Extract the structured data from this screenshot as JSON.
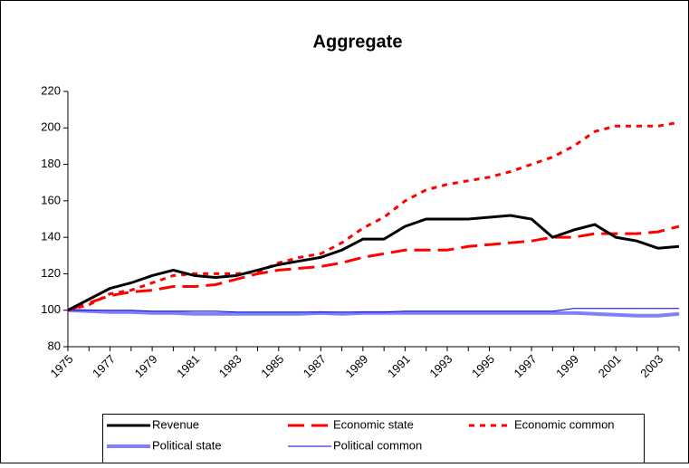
{
  "chart_data": {
    "type": "line",
    "title": "Aggregate",
    "categories": [
      "1975",
      null,
      "1977",
      null,
      "1979",
      null,
      "1981",
      null,
      "1983",
      null,
      "1985",
      null,
      "1987",
      null,
      "1989",
      null,
      "1991",
      null,
      "1993",
      null,
      "1995",
      null,
      "1997",
      null,
      "1999",
      null,
      "2001",
      null,
      "2003",
      null
    ],
    "ylim": [
      80,
      220
    ],
    "yticks": [
      80,
      100,
      120,
      140,
      160,
      180,
      200,
      220
    ],
    "grid": false,
    "series": [
      {
        "name": "Revenue",
        "color": "#000000",
        "width": 3,
        "dash": "solid",
        "values": [
          100,
          106,
          112,
          115,
          119,
          122,
          119,
          118,
          119,
          122,
          125,
          127,
          129,
          133,
          139,
          139,
          146,
          150,
          150,
          150,
          151,
          152,
          150,
          140,
          144,
          147,
          140,
          138,
          134,
          135
        ]
      },
      {
        "name": "Economic state",
        "color": "#ff0000",
        "width": 3,
        "dash": "long",
        "values": [
          100,
          104,
          108,
          110,
          111,
          113,
          113,
          114,
          117,
          120,
          122,
          123,
          124,
          126,
          129,
          131,
          133,
          133,
          133,
          135,
          136,
          137,
          138,
          140,
          140,
          142,
          142,
          142,
          143,
          146
        ]
      },
      {
        "name": "Economic common",
        "color": "#ff0000",
        "width": 3,
        "dash": "short",
        "values": [
          100,
          103,
          109,
          111,
          115,
          119,
          120,
          120,
          120,
          121,
          126,
          129,
          131,
          137,
          145,
          151,
          160,
          166,
          169,
          171,
          173,
          176,
          180,
          184,
          190,
          198,
          201,
          201,
          201,
          203
        ]
      },
      {
        "name": "Political state",
        "color": "#8080ff",
        "width": 4,
        "dash": "solid",
        "values": [
          100,
          99.5,
          99,
          99,
          98.5,
          98.5,
          98,
          98,
          98,
          98,
          98,
          98,
          98.5,
          98,
          98.5,
          98.5,
          98.5,
          98.5,
          98.5,
          98.5,
          98.5,
          98.5,
          98.5,
          98.5,
          98.5,
          98,
          97.5,
          97,
          97,
          98
        ]
      },
      {
        "name": "Political common",
        "color": "#0000cc",
        "width": 1,
        "dash": "solid",
        "values": [
          100,
          100,
          100,
          100,
          99.5,
          99.5,
          99.5,
          99.5,
          99,
          99,
          99,
          99,
          99,
          99,
          99,
          99,
          99.5,
          99.5,
          99.5,
          99.5,
          99.5,
          99.5,
          99.5,
          99.5,
          101,
          101,
          101,
          101,
          101,
          101
        ]
      }
    ]
  }
}
